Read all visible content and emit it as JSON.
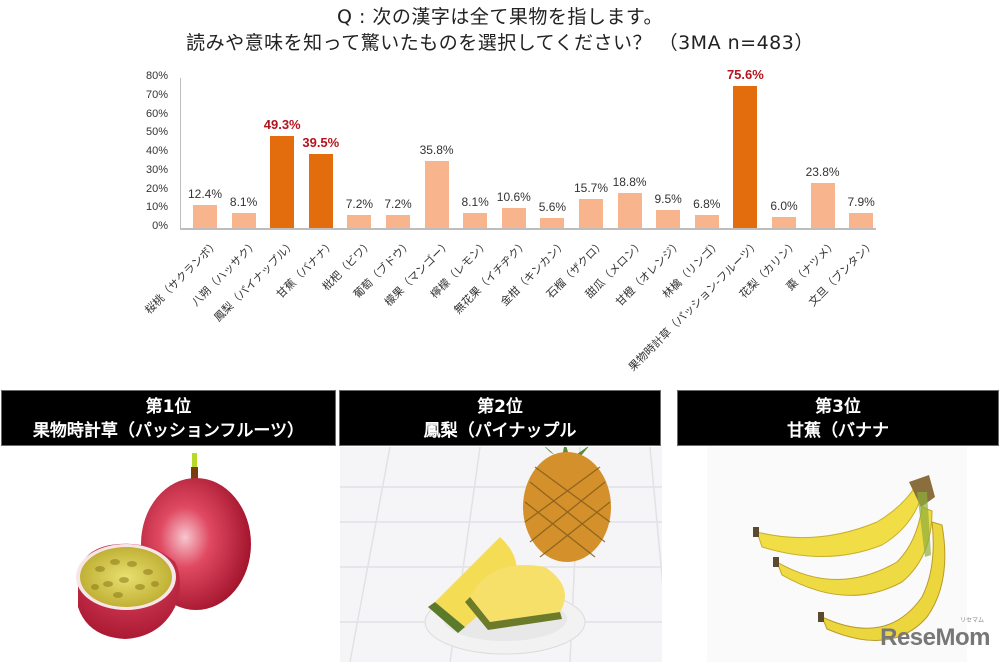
{
  "title": {
    "line1": "Q : 次の漢字は全て果物を指します。",
    "line2": "読みや意味を知って驚いたものを選択してください？ （3MA n=483）"
  },
  "colors": {
    "highlight_bar": "#e36c0c",
    "normal_bar": "#f8b48d",
    "highlight_label": "#b4141c"
  },
  "chart_data": {
    "type": "bar",
    "title": "Q : 次の漢字は全て果物を指します。読みや意味を知って驚いたものを選択してください？ （3MA n=483）",
    "xlabel": "",
    "ylabel": "",
    "ylim": [
      0,
      80
    ],
    "yticks": [
      "0%",
      "10%",
      "20%",
      "30%",
      "40%",
      "50%",
      "60%",
      "70%",
      "80%"
    ],
    "grid": false,
    "legend": null,
    "categories": [
      "桜桃（サクランボ）",
      "八朔（ハッサク）",
      "鳳梨（パイナップル）",
      "甘蕉（バナナ）",
      "枇杷（ビワ）",
      "葡萄（ブドウ）",
      "檬果（マンゴー）",
      "檸檬（レモン）",
      "無花果（イチヂク）",
      "金柑（キンカン）",
      "石榴（ザクロ）",
      "甜瓜（メロン）",
      "甘橙（オレンジ）",
      "林檎（リンゴ）",
      "果物時計草（パッション-フルーツ）",
      "花梨（カリン）",
      "棗（ナツメ）",
      "文旦（ブンタン）"
    ],
    "values": [
      12.4,
      8.1,
      49.3,
      39.5,
      7.2,
      7.2,
      35.8,
      8.1,
      10.6,
      5.6,
      15.7,
      18.8,
      9.5,
      6.8,
      75.6,
      6.0,
      23.8,
      7.9
    ],
    "value_labels": [
      "12.4%",
      "8.1%",
      "49.3%",
      "39.5%",
      "7.2%",
      "7.2%",
      "35.8%",
      "8.1%",
      "10.6%",
      "5.6%",
      "15.7%",
      "18.8%",
      "9.5%",
      "6.8%",
      "75.6%",
      "6.0%",
      "23.8%",
      "7.9%"
    ],
    "highlighted": [
      false,
      false,
      true,
      true,
      false,
      false,
      false,
      false,
      false,
      false,
      false,
      false,
      false,
      false,
      true,
      false,
      false,
      false
    ]
  },
  "rankings": [
    {
      "rank": "第1位",
      "name": "果物時計草（パッションフルーツ）",
      "image": "passion-fruit"
    },
    {
      "rank": "第2位",
      "name": "鳳梨（パイナップル",
      "image": "pineapple"
    },
    {
      "rank": "第3位",
      "name": "甘蕉（バナナ",
      "image": "banana"
    }
  ],
  "watermark": {
    "text": "ReseMom",
    "small": "リセマム"
  }
}
